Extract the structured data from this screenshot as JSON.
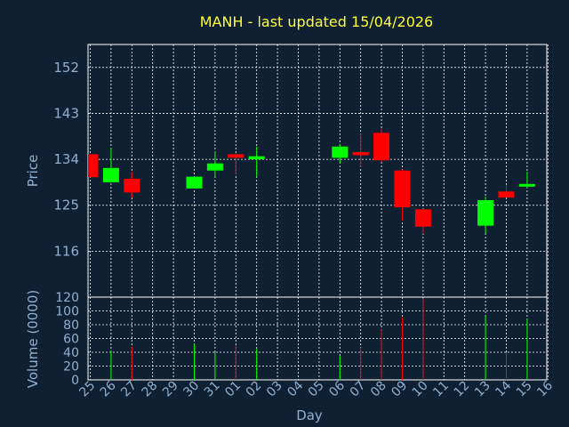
{
  "chart_data": {
    "type": "candlestick",
    "title": "MANH - last updated 15/04/2026",
    "price_panel": {
      "ylabel": "Price",
      "y_ticks": [
        "152",
        "143",
        "134",
        "125",
        "116"
      ],
      "ylim": [
        107,
        156.5
      ]
    },
    "volume_panel": {
      "ylabel": "Volume (0000)",
      "y_ticks": [
        "120",
        "100",
        "80",
        "60",
        "40",
        "20",
        "0"
      ],
      "ylim": [
        0,
        120
      ]
    },
    "xlabel": "Day",
    "x_ticks": [
      "25",
      "26",
      "27",
      "28",
      "29",
      "30",
      "31",
      "01",
      "02",
      "03",
      "04",
      "05",
      "06",
      "07",
      "08",
      "09",
      "10",
      "11",
      "12",
      "13",
      "14",
      "15",
      "16"
    ],
    "colors": {
      "up": "#00ff00",
      "down": "#ff0000",
      "grid": "#ffffff",
      "text": "#8fb0d0",
      "title": "#ffff33",
      "background": "#0f2033"
    },
    "candles": [
      {
        "day": "25",
        "open": 135.0,
        "close": 130.5,
        "high": 135.0,
        "low": 130.5,
        "volume": 0
      },
      {
        "day": "26",
        "open": 129.5,
        "close": 132.3,
        "high": 136.2,
        "low": 129.5,
        "volume": 42
      },
      {
        "day": "27",
        "open": 130.2,
        "close": 127.5,
        "high": 131.5,
        "low": 126.5,
        "volume": 48
      },
      {
        "day": "30",
        "open": 128.3,
        "close": 130.6,
        "high": 130.6,
        "low": 128.3,
        "volume": 52
      },
      {
        "day": "31",
        "open": 131.8,
        "close": 133.2,
        "high": 135.6,
        "low": 130.6,
        "volume": 40
      },
      {
        "day": "01",
        "open": 135.0,
        "close": 134.3,
        "high": 135.2,
        "low": 131.0,
        "volume": 50
      },
      {
        "day": "02",
        "open": 134.0,
        "close": 134.6,
        "high": 136.5,
        "low": 130.6,
        "volume": 45
      },
      {
        "day": "06",
        "open": 134.3,
        "close": 136.5,
        "high": 137.0,
        "low": 133.2,
        "volume": 35
      },
      {
        "day": "07",
        "open": 135.4,
        "close": 134.8,
        "high": 139.0,
        "low": 132.5,
        "volume": 47
      },
      {
        "day": "08",
        "open": 139.2,
        "close": 133.8,
        "high": 140.0,
        "low": 133.5,
        "volume": 73
      },
      {
        "day": "09",
        "open": 131.8,
        "close": 124.6,
        "high": 132.0,
        "low": 122.0,
        "volume": 90
      },
      {
        "day": "10",
        "open": 124.2,
        "close": 120.8,
        "high": 124.3,
        "low": 119.4,
        "volume": 118
      },
      {
        "day": "13",
        "open": 121.0,
        "close": 126.0,
        "high": 126.7,
        "low": 119.5,
        "volume": 93
      },
      {
        "day": "14",
        "open": 127.7,
        "close": 126.5,
        "high": 129.0,
        "low": 126.5,
        "volume": 40
      },
      {
        "day": "15",
        "open": 128.7,
        "close": 129.0,
        "high": 131.6,
        "low": 128.4,
        "volume": 88
      }
    ]
  }
}
